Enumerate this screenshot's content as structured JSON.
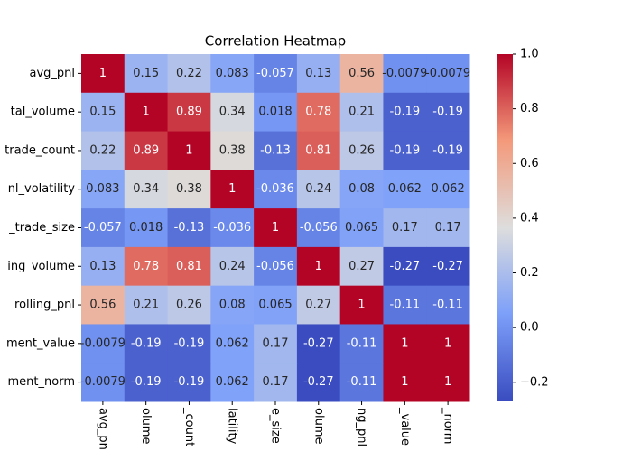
{
  "chart_data": {
    "type": "heatmap",
    "title": "Correlation Heatmap",
    "xcategories": [
      "avg_pnl",
      "olume",
      "_count",
      "latility",
      "e_size",
      "olume",
      "ng_pnl",
      "_value",
      "_norm"
    ],
    "ycategories": [
      "avg_pnl",
      "tal_volume",
      "trade_count",
      "nl_volatility",
      "_trade_size",
      "ing_volume",
      "rolling_pnl",
      "ment_value",
      "ment_norm"
    ],
    "values": [
      [
        1,
        0.15,
        0.22,
        0.083,
        -0.057,
        0.13,
        0.56,
        -0.0079,
        -0.0079
      ],
      [
        0.15,
        1,
        0.89,
        0.34,
        0.018,
        0.78,
        0.21,
        -0.19,
        -0.19
      ],
      [
        0.22,
        0.89,
        1,
        0.38,
        -0.13,
        0.81,
        0.26,
        -0.19,
        -0.19
      ],
      [
        0.083,
        0.34,
        0.38,
        1,
        -0.036,
        0.24,
        0.08,
        0.062,
        0.062
      ],
      [
        -0.057,
        0.018,
        -0.13,
        -0.036,
        1,
        -0.056,
        0.065,
        0.17,
        0.17
      ],
      [
        0.13,
        0.78,
        0.81,
        0.24,
        -0.056,
        1,
        0.27,
        -0.27,
        -0.27
      ],
      [
        0.56,
        0.21,
        0.26,
        0.08,
        0.065,
        0.27,
        1,
        -0.11,
        -0.11
      ],
      [
        -0.0079,
        -0.19,
        -0.19,
        0.062,
        0.17,
        -0.27,
        -0.11,
        1,
        1
      ],
      [
        -0.0079,
        -0.19,
        -0.19,
        0.062,
        0.17,
        -0.27,
        -0.11,
        1,
        1
      ]
    ],
    "colormap": "coolwarm",
    "zlim": [
      -0.27,
      1
    ],
    "zticks": [
      {
        "value": -0.2,
        "label": "−0.2"
      },
      {
        "value": 0,
        "label": "0.0"
      },
      {
        "value": 0.2,
        "label": "0.2"
      },
      {
        "value": 0.4,
        "label": "0.4"
      },
      {
        "value": 0.6,
        "label": "0.6"
      },
      {
        "value": 0.8,
        "label": "0.8"
      },
      {
        "value": 1,
        "label": "1.0"
      }
    ]
  }
}
